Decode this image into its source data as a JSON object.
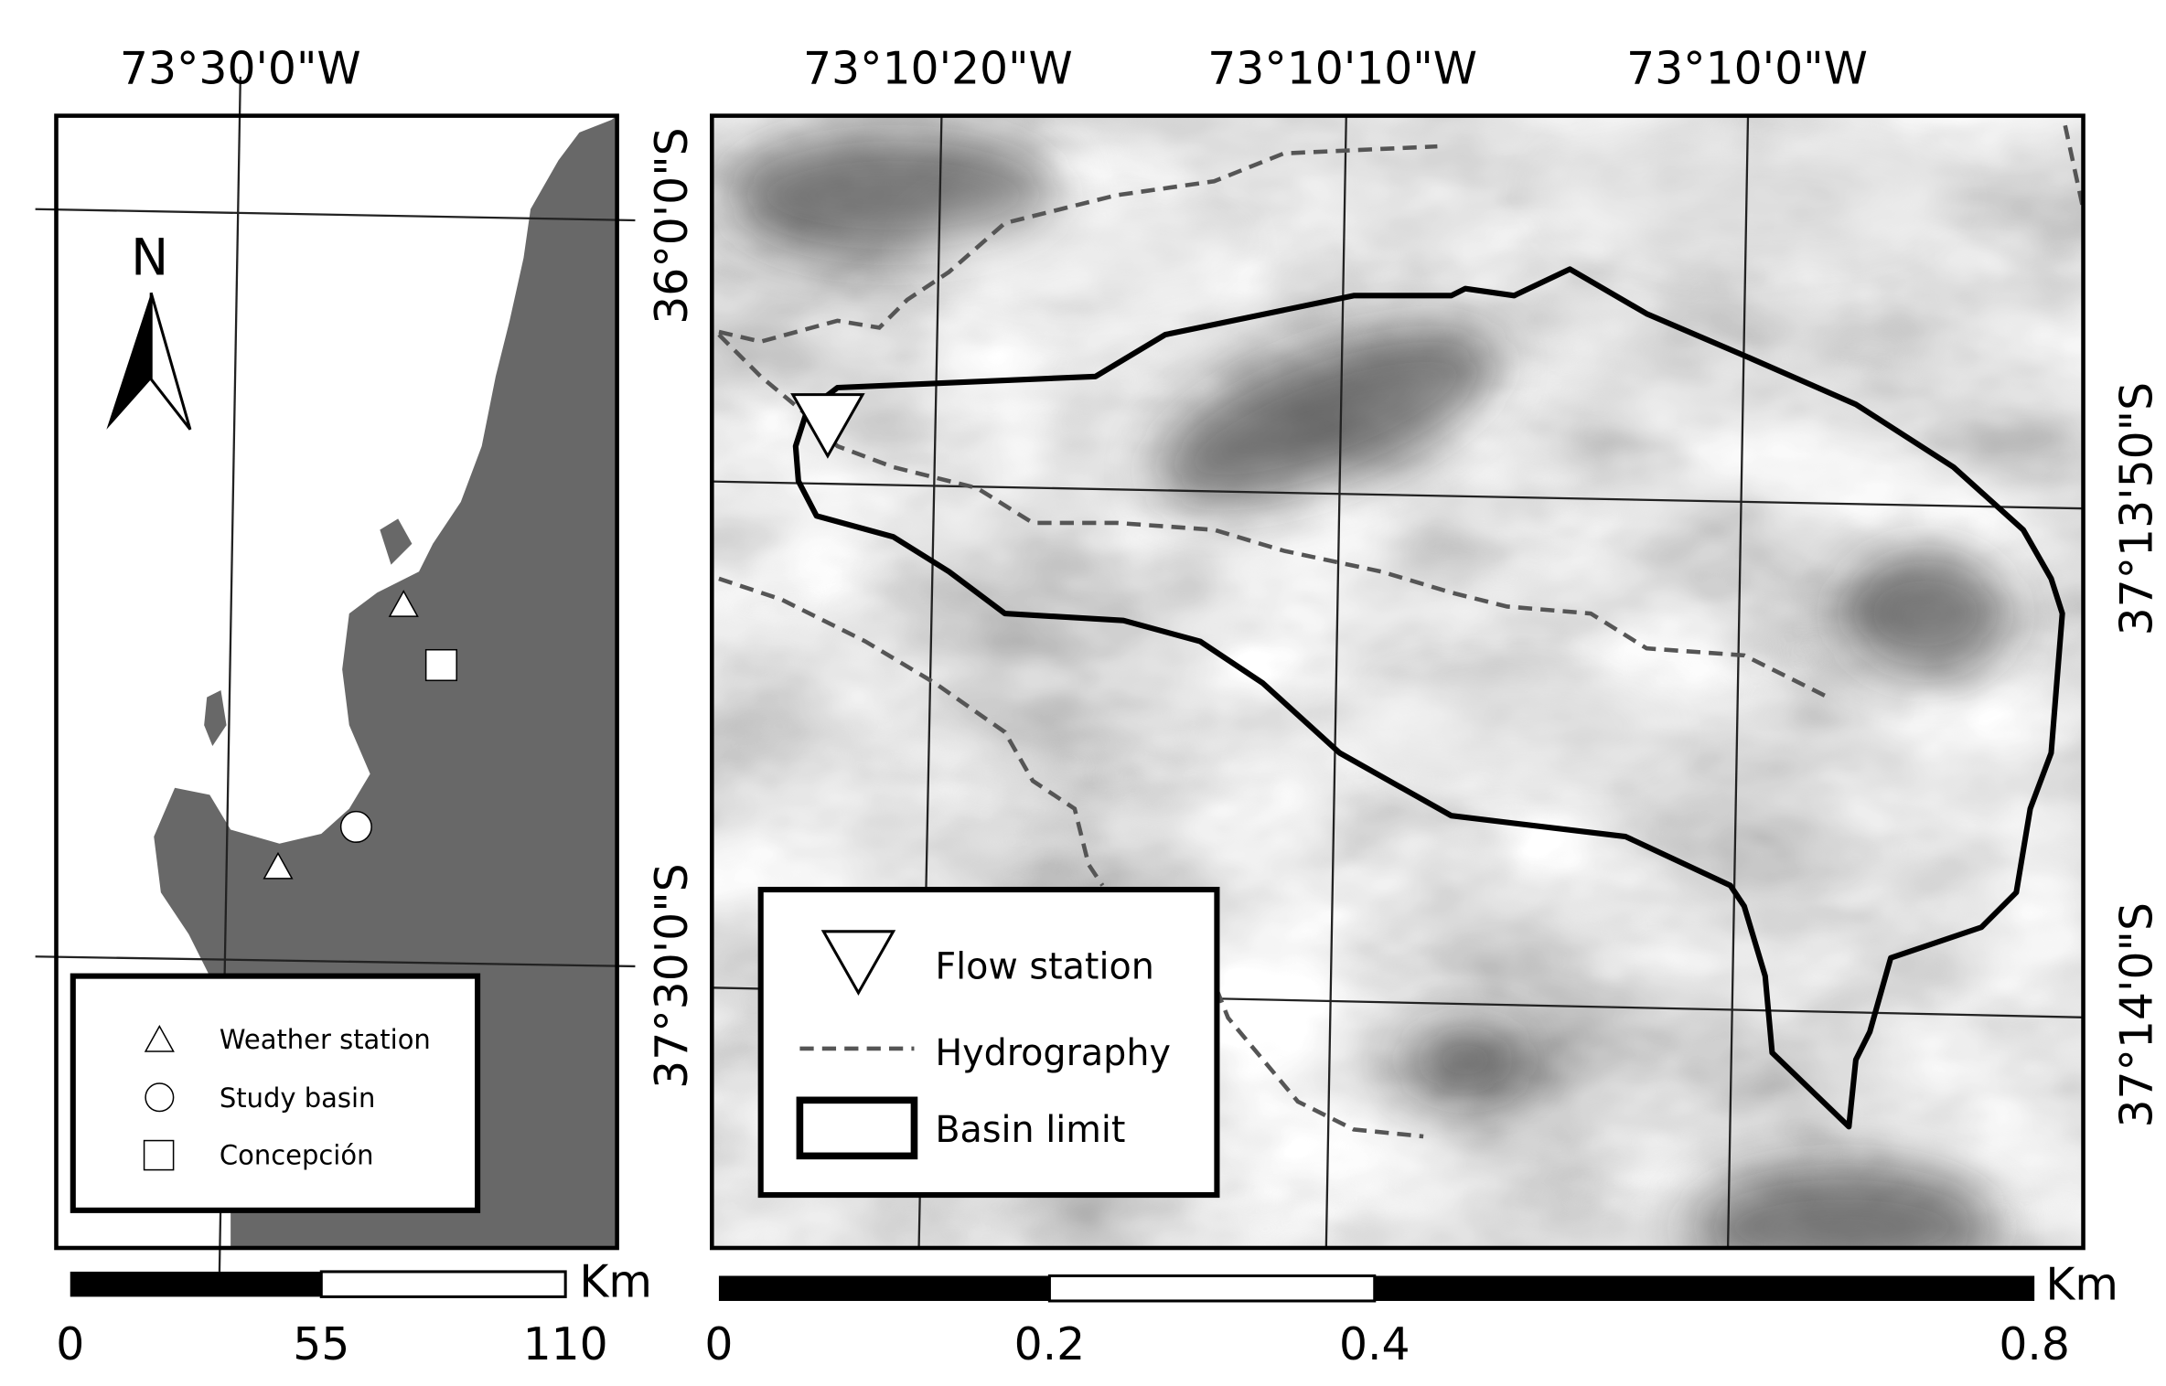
{
  "overview_map": {
    "longitude_labels": [
      "73°30'0\"W"
    ],
    "latitude_labels": [
      "36°0'0\"S",
      "37°30'0\"S"
    ],
    "north_arrow": "N",
    "legend": [
      "Weather station",
      "Study basin",
      "Concepción"
    ],
    "scale_bar": {
      "ticks": [
        "0",
        "55",
        "110"
      ],
      "unit": "Km"
    }
  },
  "detail_map": {
    "longitude_labels": [
      "73°10'20\"W",
      "73°10'10\"W",
      "73°10'0\"W"
    ],
    "latitude_labels": [
      "37°13'50\"S",
      "37°14'0\"S"
    ],
    "legend": [
      "Flow station",
      "Hydrography",
      "Basin limit"
    ],
    "scale_bar": {
      "ticks": [
        "0",
        "0.2",
        "0.4",
        "0.8"
      ],
      "unit": "Km"
    }
  }
}
